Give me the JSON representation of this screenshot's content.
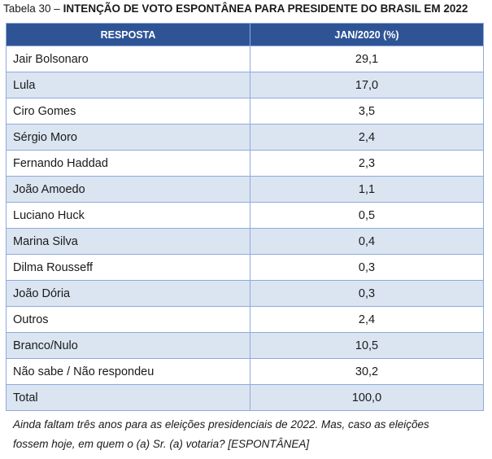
{
  "caption": {
    "prefix": "Tabela 30 – ",
    "title": "INTENÇÃO DE VOTO ESPONTÂNEA PARA PRESIDENTE DO BRASIL EM 2022"
  },
  "table": {
    "headers": [
      "RESPOSTA",
      "JAN/2020 (%)"
    ],
    "rows": [
      [
        "Jair Bolsonaro",
        "29,1"
      ],
      [
        "Lula",
        "17,0"
      ],
      [
        "Ciro Gomes",
        "3,5"
      ],
      [
        "Sérgio Moro",
        "2,4"
      ],
      [
        "Fernando Haddad",
        "2,3"
      ],
      [
        "João Amoedo",
        "1,1"
      ],
      [
        "Luciano Huck",
        "0,5"
      ],
      [
        "Marina Silva",
        "0,4"
      ],
      [
        "Dilma Rousseff",
        "0,3"
      ],
      [
        "João Dória",
        "0,3"
      ],
      [
        "Outros",
        "2,4"
      ],
      [
        "Branco/Nulo",
        "10,5"
      ],
      [
        "Não sabe / Não respondeu",
        "30,2"
      ],
      [
        "Total",
        "100,0"
      ]
    ]
  },
  "note": {
    "line1": "Ainda faltam três anos para as eleições presidenciais de 2022. Mas, caso as eleições",
    "line2": "fossem hoje, em quem o (a) Sr. (a) votaria? [ESPONTÂNEA]"
  },
  "colors": {
    "header_bg": "#2f5496",
    "alt_row_bg": "#dbe5f1",
    "border": "#8eaadb"
  }
}
